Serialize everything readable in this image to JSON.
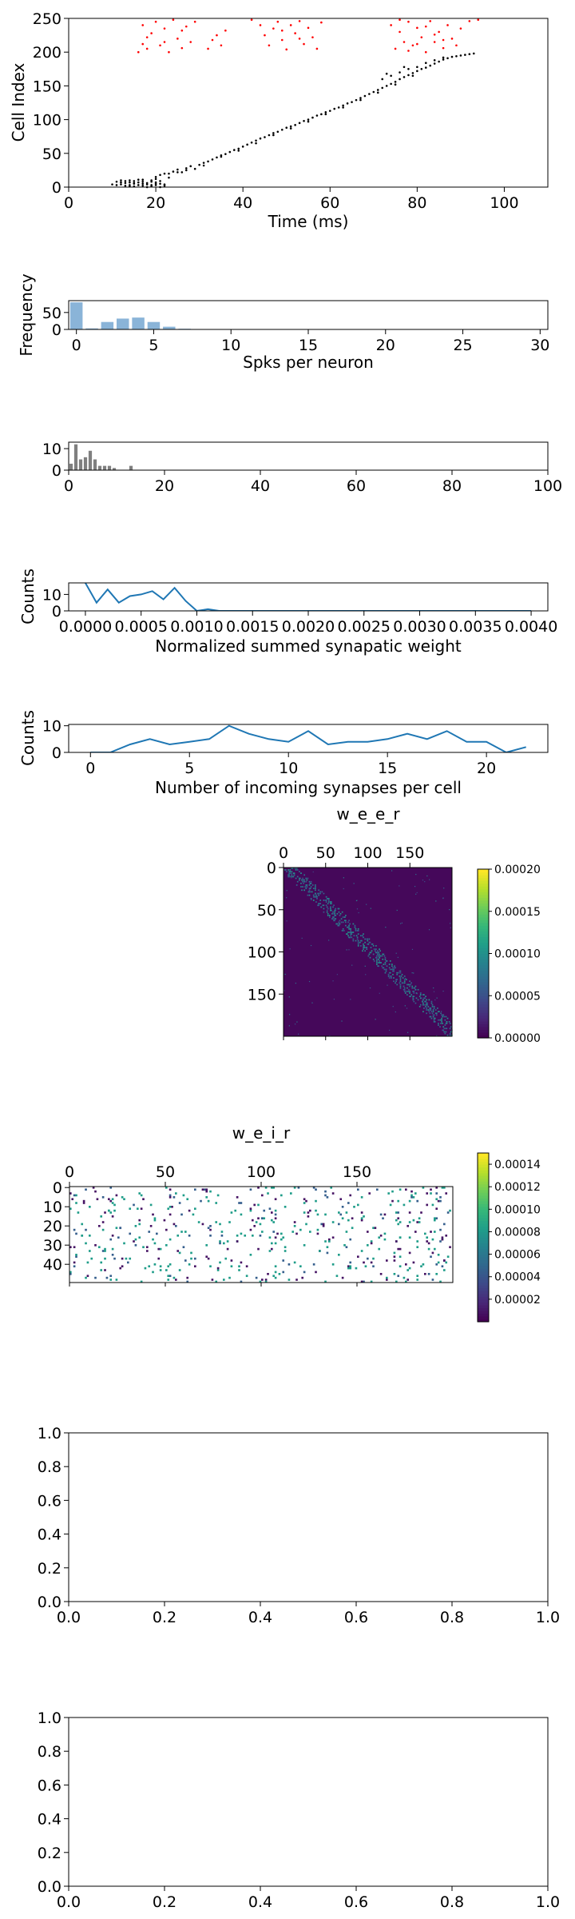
{
  "chart_data": [
    {
      "type": "scatter",
      "title": "",
      "xlabel": "Time (ms)",
      "ylabel": "Cell Index",
      "xlim": [
        0,
        110
      ],
      "ylim": [
        0,
        250
      ],
      "xticks": [
        "0",
        "20",
        "40",
        "60",
        "80",
        "100"
      ],
      "yticks": [
        "0",
        "50",
        "100",
        "150",
        "200",
        "250"
      ],
      "grid": false,
      "colors": {
        "excitatory": "#000000",
        "inhibitory": "#ff0000"
      },
      "points": [
        [
          11,
          8
        ],
        [
          12,
          4
        ],
        [
          13,
          6
        ],
        [
          13,
          2
        ],
        [
          14,
          10
        ],
        [
          14,
          1
        ],
        [
          15,
          5
        ],
        [
          15,
          9
        ],
        [
          16,
          3
        ],
        [
          16,
          7
        ],
        [
          17,
          2
        ],
        [
          17,
          11
        ],
        [
          18,
          6
        ],
        [
          18,
          4
        ],
        [
          19,
          8
        ],
        [
          19,
          1
        ],
        [
          20,
          12
        ],
        [
          20,
          3
        ],
        [
          21,
          9
        ],
        [
          21,
          5
        ],
        [
          12,
          10
        ],
        [
          14,
          3
        ],
        [
          15,
          1
        ],
        [
          16,
          11
        ],
        [
          17,
          5
        ],
        [
          18,
          0
        ],
        [
          19,
          3
        ],
        [
          20,
          7
        ],
        [
          21,
          0
        ],
        [
          22,
          4
        ],
        [
          13,
          9
        ],
        [
          14,
          7
        ],
        [
          15,
          6
        ],
        [
          17,
          8
        ],
        [
          19,
          10
        ],
        [
          20,
          5
        ],
        [
          22,
          2
        ],
        [
          10,
          4
        ],
        [
          11,
          3
        ],
        [
          12,
          7
        ],
        [
          20,
          15
        ],
        [
          21,
          18
        ],
        [
          22,
          20
        ],
        [
          23,
          14
        ],
        [
          24,
          23
        ],
        [
          25,
          26
        ],
        [
          26,
          22
        ],
        [
          27,
          28
        ],
        [
          28,
          31
        ],
        [
          29,
          27
        ],
        [
          30,
          33
        ],
        [
          31,
          36
        ],
        [
          32,
          38
        ],
        [
          33,
          41
        ],
        [
          34,
          44
        ],
        [
          35,
          47
        ],
        [
          36,
          49
        ],
        [
          37,
          52
        ],
        [
          38,
          55
        ],
        [
          39,
          57
        ],
        [
          40,
          60
        ],
        [
          41,
          63
        ],
        [
          42,
          66
        ],
        [
          43,
          69
        ],
        [
          44,
          72
        ],
        [
          45,
          74
        ],
        [
          46,
          77
        ],
        [
          47,
          80
        ],
        [
          48,
          82
        ],
        [
          49,
          85
        ],
        [
          50,
          88
        ],
        [
          51,
          90
        ],
        [
          52,
          92
        ],
        [
          53,
          95
        ],
        [
          54,
          98
        ],
        [
          55,
          100
        ],
        [
          56,
          103
        ],
        [
          57,
          106
        ],
        [
          58,
          108
        ],
        [
          59,
          111
        ],
        [
          60,
          113
        ],
        [
          61,
          116
        ],
        [
          62,
          118
        ],
        [
          63,
          121
        ],
        [
          64,
          124
        ],
        [
          65,
          126
        ],
        [
          66,
          129
        ],
        [
          67,
          132
        ],
        [
          68,
          135
        ],
        [
          69,
          138
        ],
        [
          70,
          141
        ],
        [
          71,
          144
        ],
        [
          72,
          147
        ],
        [
          73,
          150
        ],
        [
          74,
          153
        ],
        [
          75,
          156
        ],
        [
          76,
          160
        ],
        [
          77,
          163
        ],
        [
          78,
          166
        ],
        [
          79,
          169
        ],
        [
          80,
          172
        ],
        [
          81,
          175
        ],
        [
          82,
          177
        ],
        [
          83,
          180
        ],
        [
          84,
          183
        ],
        [
          85,
          186
        ],
        [
          86,
          189
        ],
        [
          87,
          191
        ],
        [
          88,
          193
        ],
        [
          89,
          194
        ],
        [
          90,
          195
        ],
        [
          91,
          196
        ],
        [
          92,
          197
        ],
        [
          93,
          198
        ],
        [
          23,
          20
        ],
        [
          25,
          22
        ],
        [
          27,
          25
        ],
        [
          31,
          32
        ],
        [
          35,
          45
        ],
        [
          39,
          54
        ],
        [
          43,
          65
        ],
        [
          47,
          77
        ],
        [
          51,
          87
        ],
        [
          55,
          97
        ],
        [
          59,
          108
        ],
        [
          63,
          118
        ],
        [
          67,
          129
        ],
        [
          71,
          140
        ],
        [
          75,
          152
        ],
        [
          79,
          165
        ],
        [
          72,
          160
        ],
        [
          74,
          165
        ],
        [
          76,
          170
        ],
        [
          78,
          175
        ],
        [
          80,
          178
        ],
        [
          82,
          184
        ],
        [
          84,
          188
        ],
        [
          86,
          192
        ],
        [
          73,
          168
        ],
        [
          77,
          178
        ]
      ],
      "red_points": [
        [
          16,
          200
        ],
        [
          17,
          212
        ],
        [
          17,
          240
        ],
        [
          18,
          205
        ],
        [
          19,
          228
        ],
        [
          20,
          245
        ],
        [
          21,
          210
        ],
        [
          22,
          235
        ],
        [
          23,
          200
        ],
        [
          24,
          248
        ],
        [
          25,
          220
        ],
        [
          26,
          206
        ],
        [
          27,
          238
        ],
        [
          28,
          215
        ],
        [
          29,
          245
        ],
        [
          18,
          222
        ],
        [
          22,
          215
        ],
        [
          26,
          232
        ],
        [
          32,
          205
        ],
        [
          33,
          218
        ],
        [
          34,
          225
        ],
        [
          35,
          210
        ],
        [
          36,
          232
        ],
        [
          42,
          248
        ],
        [
          44,
          240
        ],
        [
          45,
          225
        ],
        [
          46,
          210
        ],
        [
          47,
          235
        ],
        [
          48,
          245
        ],
        [
          49,
          218
        ],
        [
          50,
          204
        ],
        [
          51,
          240
        ],
        [
          52,
          228
        ],
        [
          53,
          246
        ],
        [
          54,
          212
        ],
        [
          55,
          236
        ],
        [
          56,
          222
        ],
        [
          57,
          205
        ],
        [
          58,
          244
        ],
        [
          49,
          232
        ],
        [
          53,
          220
        ],
        [
          74,
          240
        ],
        [
          75,
          205
        ],
        [
          76,
          230
        ],
        [
          77,
          215
        ],
        [
          78,
          245
        ],
        [
          79,
          210
        ],
        [
          80,
          236
        ],
        [
          81,
          222
        ],
        [
          82,
          200
        ],
        [
          83,
          246
        ],
        [
          84,
          215
        ],
        [
          85,
          230
        ],
        [
          86,
          206
        ],
        [
          87,
          240
        ],
        [
          88,
          220
        ],
        [
          89,
          210
        ],
        [
          90,
          235
        ],
        [
          92,
          246
        ],
        [
          94,
          248
        ],
        [
          76,
          248
        ],
        [
          80,
          212
        ],
        [
          84,
          226
        ],
        [
          78,
          202
        ],
        [
          82,
          238
        ],
        [
          86,
          218
        ]
      ]
    },
    {
      "type": "bar",
      "title": "",
      "xlabel": "Spks per neuron",
      "ylabel": "Frequency",
      "xlim": [
        -0.5,
        30.5
      ],
      "ylim": [
        0,
        85
      ],
      "xticks": [
        "0",
        "5",
        "10",
        "15",
        "20",
        "25",
        "30"
      ],
      "yticks": [
        "0",
        "50"
      ],
      "color": "#8ab4d8",
      "categories": [
        0,
        1,
        2,
        3,
        4,
        5,
        6,
        7
      ],
      "values": [
        80,
        3,
        22,
        32,
        35,
        22,
        8,
        2
      ]
    },
    {
      "type": "bar",
      "title": "",
      "xlabel": "",
      "ylabel": "",
      "xlim": [
        0,
        100
      ],
      "ylim": [
        0,
        13
      ],
      "xticks": [
        "0",
        "20",
        "40",
        "60",
        "80",
        "100"
      ],
      "yticks": [
        "0",
        "10"
      ],
      "color": "#7f7f7f",
      "categories": [
        0.5,
        1.5,
        2.5,
        3.5,
        4.5,
        5.5,
        6.5,
        7.5,
        8.5,
        9.5,
        13
      ],
      "values": [
        3,
        12,
        5,
        6,
        9,
        5,
        2,
        2,
        2,
        1,
        2
      ]
    },
    {
      "type": "line",
      "title": "",
      "xlabel": "Normalized summed synapatic weight",
      "ylabel": "Counts",
      "xlim": [
        -0.00015,
        0.00415
      ],
      "ylim": [
        0,
        17
      ],
      "xticks": [
        "0.0000",
        "0.0005",
        "0.0010",
        "0.0015",
        "0.0020",
        "0.0025",
        "0.0030",
        "0.0035",
        "0.0040"
      ],
      "yticks": [
        "0",
        "10"
      ],
      "color": "#1f77b4",
      "x": [
        0,
        0.0001,
        0.0002,
        0.0003,
        0.0004,
        0.0005,
        0.0006,
        0.0007,
        0.0008,
        0.0009,
        0.001,
        0.0011,
        0.0012,
        0.0015,
        0.002,
        0.0025,
        0.003,
        0.0035,
        0.004
      ],
      "y": [
        17,
        5,
        13,
        5,
        9,
        10,
        12,
        7,
        14,
        6,
        0,
        1,
        0,
        0,
        0,
        0,
        0,
        0,
        0
      ]
    },
    {
      "type": "line",
      "title": "",
      "xlabel": "Number of incoming synapses per cell",
      "ylabel": "Counts",
      "xlim": [
        -1.1,
        23.1
      ],
      "ylim": [
        0,
        10.5
      ],
      "xticks": [
        "0",
        "5",
        "10",
        "15",
        "20"
      ],
      "yticks": [
        "0",
        "10"
      ],
      "color": "#1f77b4",
      "x": [
        0,
        1,
        2,
        3,
        4,
        5,
        6,
        7,
        8,
        9,
        10,
        11,
        12,
        13,
        14,
        15,
        16,
        17,
        18,
        19,
        20,
        21,
        22
      ],
      "y": [
        0,
        0,
        3,
        5,
        3,
        4,
        5,
        10,
        7,
        5,
        4,
        8,
        3,
        4,
        4,
        5,
        7,
        5,
        8,
        4,
        4,
        0,
        2
      ]
    },
    {
      "type": "heatmap",
      "title": "w_e_e_r",
      "rows": 200,
      "cols": 200,
      "xticks": [
        "0",
        "50",
        "100",
        "150"
      ],
      "yticks": [
        "0",
        "50",
        "100",
        "150"
      ],
      "colorbar_ticks": [
        "0.00000",
        "0.00005",
        "0.00010",
        "0.00015",
        "0.00020"
      ],
      "vmin": 0,
      "vmax": 0.0002
    },
    {
      "type": "heatmap",
      "title": "w_e_i_r",
      "rows": 50,
      "cols": 200,
      "xticks": [
        "0",
        "50",
        "100",
        "150"
      ],
      "yticks": [
        "0",
        "10",
        "20",
        "30",
        "40"
      ],
      "colorbar_ticks": [
        "0.00002",
        "0.00004",
        "0.00006",
        "0.00008",
        "0.00010",
        "0.00012",
        "0.00014"
      ],
      "vmin": 0,
      "vmax": 0.00015
    },
    {
      "type": "scatter",
      "title": "",
      "xticks": [
        "0.0",
        "0.2",
        "0.4",
        "0.6",
        "0.8",
        "1.0"
      ],
      "yticks": [
        "0.0",
        "0.2",
        "0.4",
        "0.6",
        "0.8",
        "1.0"
      ],
      "points": []
    },
    {
      "type": "scatter",
      "title": "",
      "xticks": [
        "0.0",
        "0.2",
        "0.4",
        "0.6",
        "0.8",
        "1.0"
      ],
      "yticks": [
        "0.0",
        "0.2",
        "0.4",
        "0.6",
        "0.8",
        "1.0"
      ],
      "points": []
    }
  ]
}
